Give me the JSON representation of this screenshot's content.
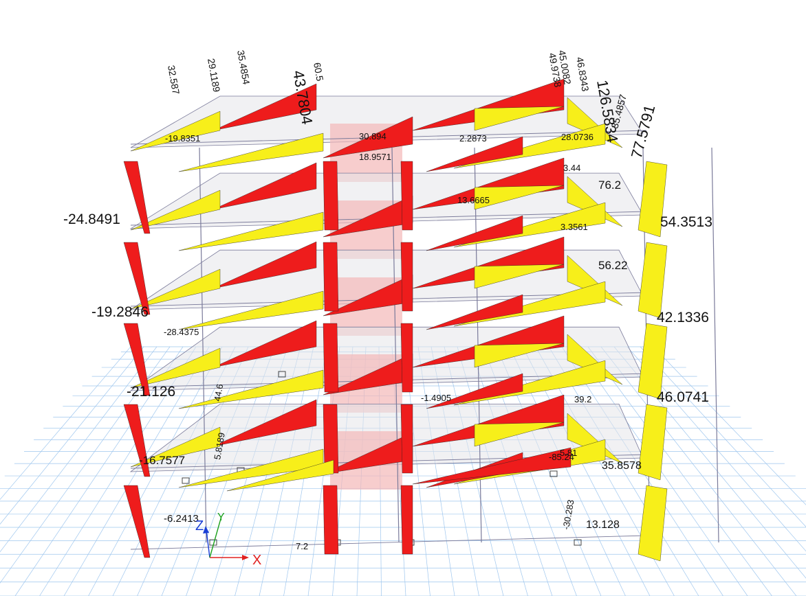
{
  "colors": {
    "positive_moment": "#ee1c1c",
    "negative_moment": "#f7ef1a",
    "frame_line": "#7a7a9a",
    "slab_fill": "#e6e6ea",
    "grid_line": "#9ec6ee",
    "highlight_slab": "#f4b8b8"
  },
  "axes": {
    "x": "X",
    "y": "Y",
    "z": "Z"
  },
  "left_labels": [
    "-24.8491",
    "-19.2846",
    "-21.126",
    "-16.7577",
    "-6.2413"
  ],
  "right_labels": [
    "54.3513",
    "42.1336",
    "46.0741",
    "35.8578",
    "13.128",
    "56.22",
    "76.2"
  ],
  "top_labels": [
    "32.587",
    "29.1189",
    "35.4854",
    "43.7804",
    "60.5",
    "126.5834",
    "35.4857",
    "77.5791",
    "49.9738",
    "45.0082",
    "46.8343"
  ],
  "interior_labels": [
    "-30.283",
    "-85.24",
    "5.81",
    "39.2",
    "-1.4905",
    "28.0736",
    "3.44",
    "2.2873",
    "13.6665",
    "-19.8351",
    "-28.4375",
    "3.3561",
    "44.6",
    "5.8189",
    "30.894",
    "18.9571",
    "7.2"
  ]
}
